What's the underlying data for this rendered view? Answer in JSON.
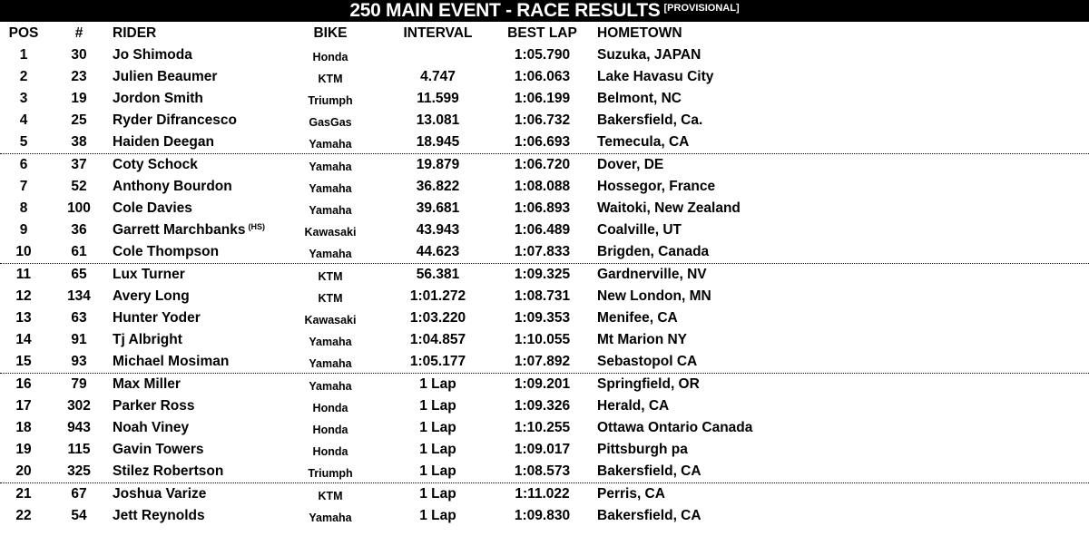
{
  "title": "250 MAIN EVENT - RACE RESULTS",
  "title_badge": "[PROVISIONAL]",
  "columns": {
    "pos": "POS",
    "num": "#",
    "rider": "RIDER",
    "bike": "BIKE",
    "interval": "INTERVAL",
    "best_lap": "BEST LAP",
    "hometown": "HOMETOWN"
  },
  "rows": [
    {
      "pos": "1",
      "num": "30",
      "rider": "Jo Shimoda",
      "rider_note": "",
      "bike": "Honda",
      "interval": "",
      "best_lap": "1:05.790",
      "hometown": "Suzuka, JAPAN"
    },
    {
      "pos": "2",
      "num": "23",
      "rider": "Julien Beaumer",
      "rider_note": "",
      "bike": "KTM",
      "interval": "4.747",
      "best_lap": "1:06.063",
      "hometown": "Lake Havasu City"
    },
    {
      "pos": "3",
      "num": "19",
      "rider": "Jordon Smith",
      "rider_note": "",
      "bike": "Triumph",
      "interval": "11.599",
      "best_lap": "1:06.199",
      "hometown": "Belmont, NC"
    },
    {
      "pos": "4",
      "num": "25",
      "rider": "Ryder Difrancesco",
      "rider_note": "",
      "bike": "GasGas",
      "interval": "13.081",
      "best_lap": "1:06.732",
      "hometown": "Bakersfield, Ca."
    },
    {
      "pos": "5",
      "num": "38",
      "rider": "Haiden Deegan",
      "rider_note": "",
      "bike": "Yamaha",
      "interval": "18.945",
      "best_lap": "1:06.693",
      "hometown": "Temecula, CA"
    },
    {
      "pos": "6",
      "num": "37",
      "rider": "Coty Schock",
      "rider_note": "",
      "bike": "Yamaha",
      "interval": "19.879",
      "best_lap": "1:06.720",
      "hometown": "Dover, DE"
    },
    {
      "pos": "7",
      "num": "52",
      "rider": "Anthony Bourdon",
      "rider_note": "",
      "bike": "Yamaha",
      "interval": "36.822",
      "best_lap": "1:08.088",
      "hometown": "Hossegor, France"
    },
    {
      "pos": "8",
      "num": "100",
      "rider": "Cole Davies",
      "rider_note": "",
      "bike": "Yamaha",
      "interval": "39.681",
      "best_lap": "1:06.893",
      "hometown": "Waitoki, New Zealand"
    },
    {
      "pos": "9",
      "num": "36",
      "rider": "Garrett Marchbanks",
      "rider_note": "(HS)",
      "bike": "Kawasaki",
      "interval": "43.943",
      "best_lap": "1:06.489",
      "hometown": "Coalville, UT"
    },
    {
      "pos": "10",
      "num": "61",
      "rider": "Cole Thompson",
      "rider_note": "",
      "bike": "Yamaha",
      "interval": "44.623",
      "best_lap": "1:07.833",
      "hometown": "Brigden, Canada"
    },
    {
      "pos": "11",
      "num": "65",
      "rider": "Lux Turner",
      "rider_note": "",
      "bike": "KTM",
      "interval": "56.381",
      "best_lap": "1:09.325",
      "hometown": "Gardnerville, NV"
    },
    {
      "pos": "12",
      "num": "134",
      "rider": "Avery Long",
      "rider_note": "",
      "bike": "KTM",
      "interval": "1:01.272",
      "best_lap": "1:08.731",
      "hometown": "New London, MN"
    },
    {
      "pos": "13",
      "num": "63",
      "rider": "Hunter Yoder",
      "rider_note": "",
      "bike": "Kawasaki",
      "interval": "1:03.220",
      "best_lap": "1:09.353",
      "hometown": "Menifee, CA"
    },
    {
      "pos": "14",
      "num": "91",
      "rider": "Tj Albright",
      "rider_note": "",
      "bike": "Yamaha",
      "interval": "1:04.857",
      "best_lap": "1:10.055",
      "hometown": "Mt Marion NY"
    },
    {
      "pos": "15",
      "num": "93",
      "rider": "Michael Mosiman",
      "rider_note": "",
      "bike": "Yamaha",
      "interval": "1:05.177",
      "best_lap": "1:07.892",
      "hometown": "Sebastopol CA"
    },
    {
      "pos": "16",
      "num": "79",
      "rider": "Max Miller",
      "rider_note": "",
      "bike": "Yamaha",
      "interval": "1 Lap",
      "best_lap": "1:09.201",
      "hometown": "Springfield, OR"
    },
    {
      "pos": "17",
      "num": "302",
      "rider": "Parker Ross",
      "rider_note": "",
      "bike": "Honda",
      "interval": "1 Lap",
      "best_lap": "1:09.326",
      "hometown": "Herald, CA"
    },
    {
      "pos": "18",
      "num": "943",
      "rider": "Noah Viney",
      "rider_note": "",
      "bike": "Honda",
      "interval": "1 Lap",
      "best_lap": "1:10.255",
      "hometown": "Ottawa Ontario Canada"
    },
    {
      "pos": "19",
      "num": "115",
      "rider": "Gavin Towers",
      "rider_note": "",
      "bike": "Honda",
      "interval": "1 Lap",
      "best_lap": "1:09.017",
      "hometown": "Pittsburgh pa"
    },
    {
      "pos": "20",
      "num": "325",
      "rider": "Stilez Robertson",
      "rider_note": "",
      "bike": "Triumph",
      "interval": "1 Lap",
      "best_lap": "1:08.573",
      "hometown": "Bakersfield, CA"
    },
    {
      "pos": "21",
      "num": "67",
      "rider": "Joshua Varize",
      "rider_note": "",
      "bike": "KTM",
      "interval": "1 Lap",
      "best_lap": "1:11.022",
      "hometown": "Perris, CA"
    },
    {
      "pos": "22",
      "num": "54",
      "rider": "Jett Reynolds",
      "rider_note": "",
      "bike": "Yamaha",
      "interval": "1 Lap",
      "best_lap": "1:09.830",
      "hometown": "Bakersfield, CA"
    }
  ]
}
